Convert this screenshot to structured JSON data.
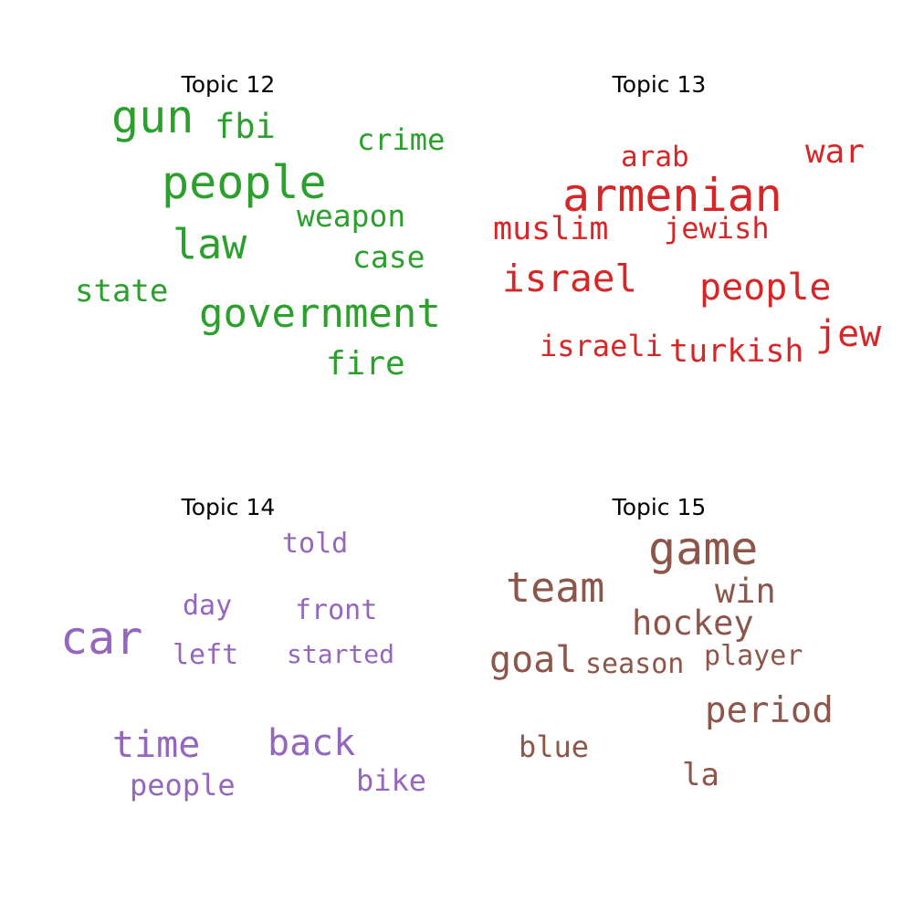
{
  "panels": [
    {
      "title": "Topic 12",
      "color": "#2ca02c",
      "words": [
        "gun",
        "fbi",
        "crime",
        "people",
        "weapon",
        "law",
        "case",
        "state",
        "government",
        "fire"
      ]
    },
    {
      "title": "Topic 13",
      "color": "#d62728",
      "words": [
        "arab",
        "war",
        "armenian",
        "muslim",
        "jewish",
        "israel",
        "people",
        "jew",
        "israeli",
        "turkish"
      ]
    },
    {
      "title": "Topic 14",
      "color": "#9467bd",
      "words": [
        "told",
        "day",
        "front",
        "car",
        "left",
        "started",
        "time",
        "back",
        "people",
        "bike"
      ]
    },
    {
      "title": "Topic 15",
      "color": "#8c564b",
      "words": [
        "game",
        "team",
        "win",
        "hockey",
        "goal",
        "season",
        "player",
        "period",
        "blue",
        "la"
      ]
    }
  ]
}
